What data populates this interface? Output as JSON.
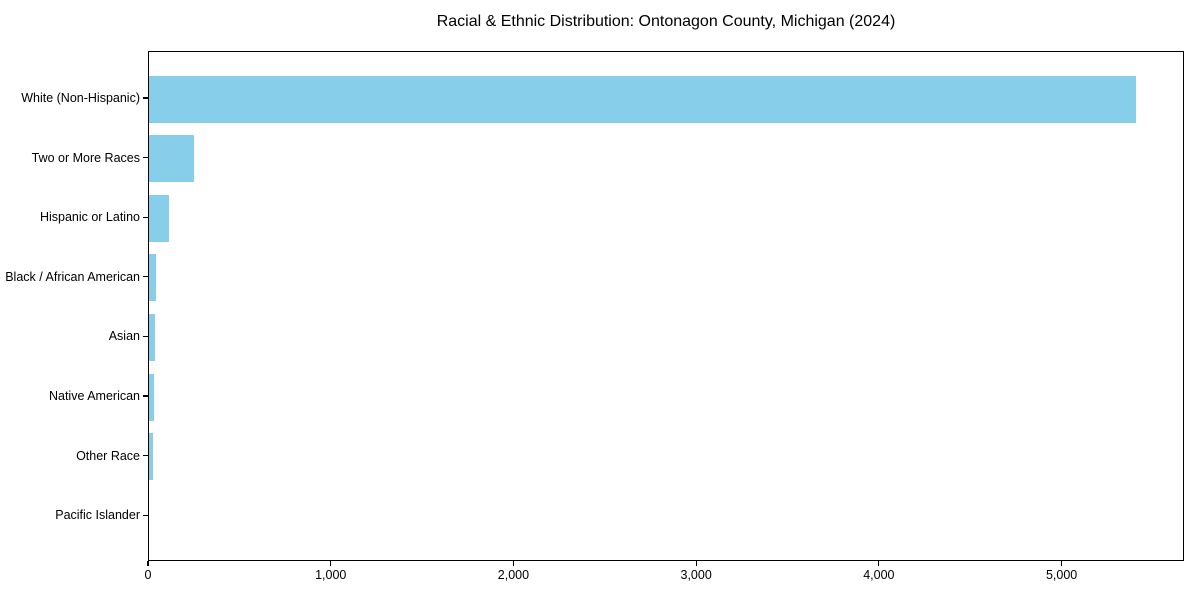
{
  "chart_data": {
    "type": "bar",
    "orientation": "horizontal",
    "title": "Racial & Ethnic Distribution: Ontonagon County, Michigan (2024)",
    "categories": [
      "White (Non-Hispanic)",
      "Two or More Races",
      "Hispanic or Latino",
      "Black / African American",
      "Asian",
      "Native American",
      "Other Race",
      "Pacific Islander"
    ],
    "values": [
      5400,
      245,
      110,
      38,
      32,
      26,
      24,
      0
    ],
    "xlabel": "",
    "ylabel": "",
    "xlim": [
      0,
      5670
    ],
    "x_ticks": [
      0,
      1000,
      2000,
      3000,
      4000,
      5000
    ],
    "x_tick_labels": [
      "0",
      "1,000",
      "2,000",
      "3,000",
      "4,000",
      "5,000"
    ],
    "bar_color": "#87CEEB",
    "spine_color": "#000000",
    "background_color": "#ffffff",
    "grid": false,
    "legend": null
  }
}
